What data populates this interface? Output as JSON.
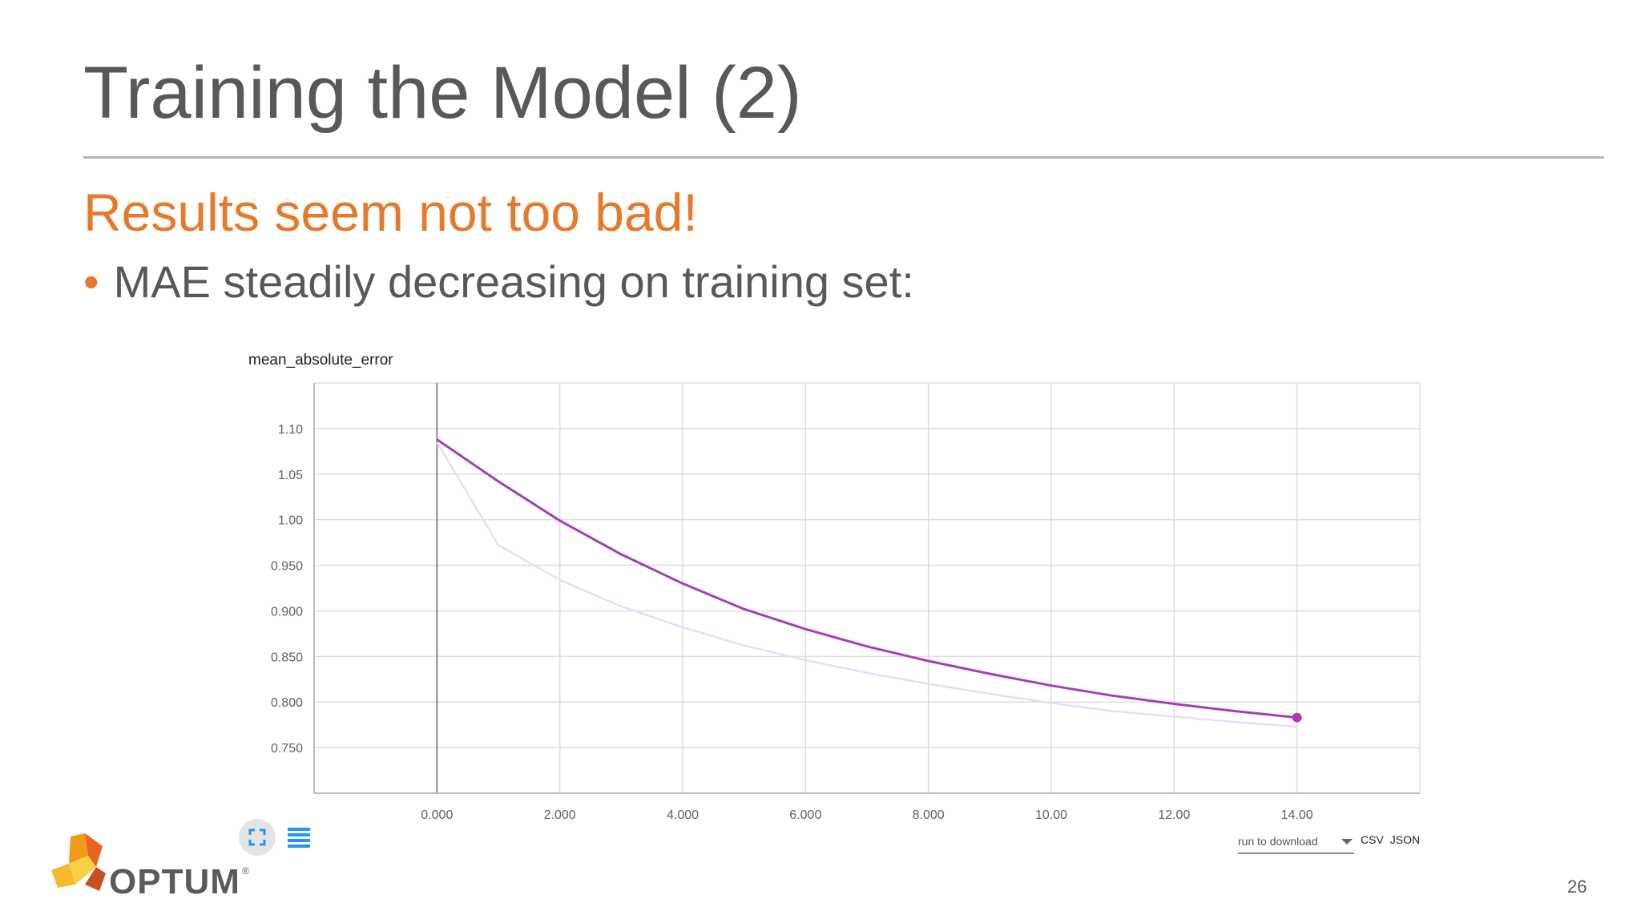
{
  "slide": {
    "title": "Training the Model (2)",
    "subtitle": "Results seem not too bad!",
    "bullet": "MAE steadily decreasing on training set:",
    "page_number": "26",
    "accent_color": "#e57a2a",
    "text_color": "#58585a"
  },
  "chart_data": {
    "type": "line",
    "title": "mean_absolute_error",
    "xlabel": "",
    "ylabel": "",
    "xlim": [
      -2,
      16
    ],
    "ylim": [
      0.7,
      1.15
    ],
    "x_ticks": [
      0,
      2,
      4,
      6,
      8,
      10,
      12,
      14
    ],
    "x_tick_labels": [
      "0.000",
      "2.000",
      "4.000",
      "6.000",
      "8.000",
      "10.00",
      "12.00",
      "14.00"
    ],
    "y_ticks": [
      0.75,
      0.8,
      0.85,
      0.9,
      0.95,
      1.0,
      1.05,
      1.1
    ],
    "y_tick_labels": [
      "0.750",
      "0.800",
      "0.850",
      "0.900",
      "0.950",
      "1.00",
      "1.05",
      "1.10"
    ],
    "grid": true,
    "series": [
      {
        "color": "#ebdcf2",
        "x": [
          0,
          1,
          2,
          3,
          4,
          5,
          6,
          7,
          8,
          9,
          10,
          11,
          12,
          13,
          14
        ],
        "y": [
          1.085,
          0.972,
          0.934,
          0.905,
          0.882,
          0.862,
          0.846,
          0.832,
          0.82,
          0.809,
          0.799,
          0.79,
          0.784,
          0.778,
          0.773
        ]
      },
      {
        "color": "#a63fb5",
        "x": [
          0,
          1,
          2,
          3,
          4,
          5,
          6,
          7,
          8,
          9,
          10,
          11,
          12,
          13,
          14
        ],
        "y": [
          1.088,
          1.042,
          0.999,
          0.962,
          0.93,
          0.902,
          0.88,
          0.861,
          0.845,
          0.831,
          0.818,
          0.807,
          0.798,
          0.79,
          0.783
        ]
      }
    ]
  },
  "controls": {
    "expand_icon": "expand-icon",
    "list_icon": "list-icon",
    "icon_color": "#2196f3",
    "run_select_label": "run to download",
    "csv_label": "CSV",
    "json_label": "JSON"
  },
  "logo": {
    "name": "OPTUM",
    "registered": "®"
  }
}
